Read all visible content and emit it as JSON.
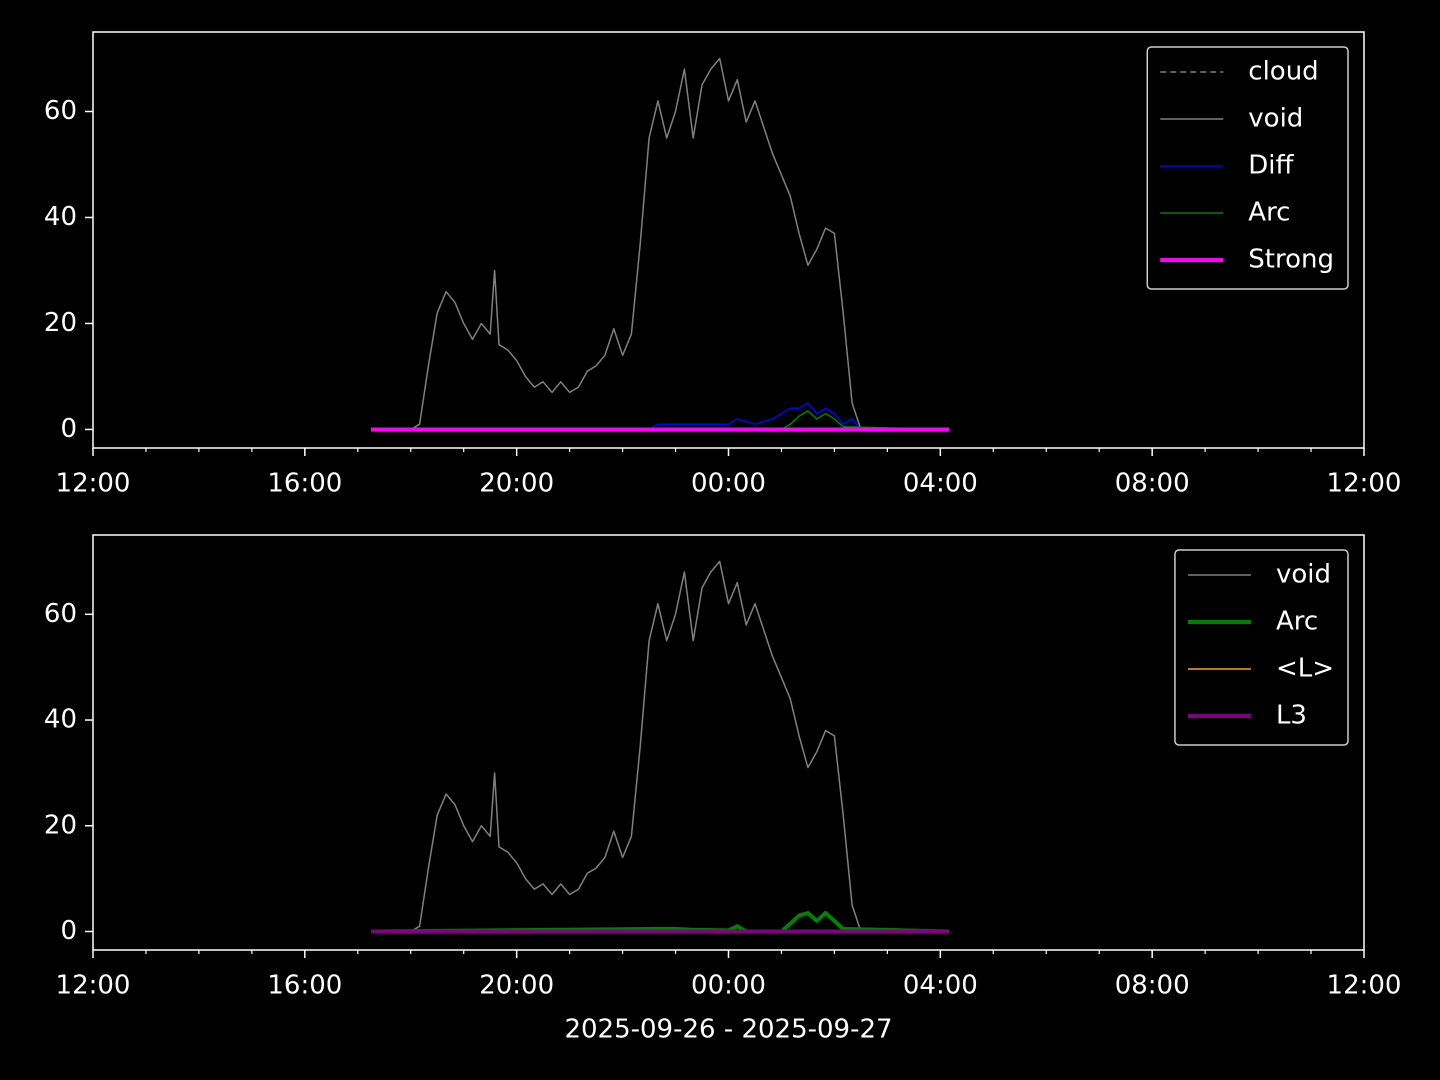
{
  "chart_data": [
    {
      "type": "line",
      "xlim": [
        "2025-09-26T12:00",
        "2025-09-27T12:00"
      ],
      "xticks": [
        {
          "value": "2025-09-26T12:00",
          "label": "12:00"
        },
        {
          "value": "2025-09-26T16:00",
          "label": "16:00"
        },
        {
          "value": "2025-09-26T20:00",
          "label": "20:00"
        },
        {
          "value": "2025-09-27T00:00",
          "label": "00:00"
        },
        {
          "value": "2025-09-27T04:00",
          "label": "04:00"
        },
        {
          "value": "2025-09-27T08:00",
          "label": "08:00"
        },
        {
          "value": "2025-09-27T12:00",
          "label": "12:00"
        }
      ],
      "xminorticks": [
        "2025-09-26T13:00",
        "2025-09-26T14:00",
        "2025-09-26T15:00",
        "2025-09-26T17:00",
        "2025-09-26T18:00",
        "2025-09-26T19:00",
        "2025-09-26T21:00",
        "2025-09-26T22:00",
        "2025-09-26T23:00",
        "2025-09-27T01:00",
        "2025-09-27T02:00",
        "2025-09-27T03:00",
        "2025-09-27T05:00",
        "2025-09-27T06:00",
        "2025-09-27T07:00",
        "2025-09-27T09:00",
        "2025-09-27T10:00",
        "2025-09-27T11:00"
      ],
      "ylim": [
        -3.5,
        75
      ],
      "yticks": [
        0,
        20,
        40,
        60
      ],
      "legend": "upper right",
      "series": [
        {
          "name": "cloud",
          "color": "#808080",
          "linestyle": "dashed",
          "linewidth": 1.5,
          "x": [
            "2025-09-26T17:15",
            "2025-09-27T04:10"
          ],
          "values": [
            0,
            0
          ]
        },
        {
          "name": "void",
          "color": "#808080",
          "linewidth": 1.5,
          "x": [
            "2025-09-26T18:00",
            "2025-09-26T18:10",
            "2025-09-26T18:20",
            "2025-09-26T18:30",
            "2025-09-26T18:40",
            "2025-09-26T18:50",
            "2025-09-26T19:00",
            "2025-09-26T19:10",
            "2025-09-26T19:20",
            "2025-09-26T19:30",
            "2025-09-26T19:35",
            "2025-09-26T19:40",
            "2025-09-26T19:50",
            "2025-09-26T20:00",
            "2025-09-26T20:10",
            "2025-09-26T20:20",
            "2025-09-26T20:30",
            "2025-09-26T20:40",
            "2025-09-26T20:50",
            "2025-09-26T21:00",
            "2025-09-26T21:10",
            "2025-09-26T21:20",
            "2025-09-26T21:30",
            "2025-09-26T21:40",
            "2025-09-26T21:50",
            "2025-09-26T22:00",
            "2025-09-26T22:10",
            "2025-09-26T22:20",
            "2025-09-26T22:30",
            "2025-09-26T22:40",
            "2025-09-26T22:50",
            "2025-09-26T23:00",
            "2025-09-26T23:10",
            "2025-09-26T23:20",
            "2025-09-26T23:30",
            "2025-09-26T23:40",
            "2025-09-26T23:50",
            "2025-09-27T00:00",
            "2025-09-27T00:10",
            "2025-09-27T00:20",
            "2025-09-27T00:30",
            "2025-09-27T00:40",
            "2025-09-27T00:50",
            "2025-09-27T01:00",
            "2025-09-27T01:10",
            "2025-09-27T01:20",
            "2025-09-27T01:30",
            "2025-09-27T01:40",
            "2025-09-27T01:50",
            "2025-09-27T02:00",
            "2025-09-27T02:10",
            "2025-09-27T02:20",
            "2025-09-27T02:30"
          ],
          "values": [
            0,
            1,
            12,
            22,
            26,
            24,
            20,
            17,
            20,
            18,
            30,
            16,
            15,
            13,
            10,
            8,
            9,
            7,
            9,
            7,
            8,
            11,
            12,
            14,
            19,
            14,
            18,
            35,
            55,
            62,
            55,
            60,
            68,
            55,
            65,
            68,
            70,
            62,
            66,
            58,
            62,
            57,
            52,
            48,
            44,
            37,
            31,
            34,
            38,
            37,
            22,
            5,
            0
          ]
        },
        {
          "name": "Diff",
          "color": "#0000ff",
          "linewidth": 1.5,
          "x": [
            "2025-09-26T17:15",
            "2025-09-26T22:30",
            "2025-09-26T22:40",
            "2025-09-26T23:00",
            "2025-09-26T23:20",
            "2025-09-26T23:40",
            "2025-09-27T00:00",
            "2025-09-27T00:10",
            "2025-09-27T00:30",
            "2025-09-27T00:50",
            "2025-09-27T01:10",
            "2025-09-27T01:20",
            "2025-09-27T01:30",
            "2025-09-27T01:40",
            "2025-09-27T01:50",
            "2025-09-27T02:00",
            "2025-09-27T02:10",
            "2025-09-27T02:20",
            "2025-09-27T02:30",
            "2025-09-27T04:10"
          ],
          "values": [
            0,
            0,
            1,
            1,
            1,
            1,
            1,
            2,
            1,
            2,
            4,
            4,
            5,
            3,
            4,
            3,
            1,
            2,
            0,
            0
          ]
        },
        {
          "name": "Arc",
          "color": "#008000",
          "linewidth": 1.5,
          "x": [
            "2025-09-26T17:15",
            "2025-09-27T01:00",
            "2025-09-27T01:10",
            "2025-09-27T01:20",
            "2025-09-27T01:30",
            "2025-09-27T01:40",
            "2025-09-27T01:50",
            "2025-09-27T02:00",
            "2025-09-27T02:10",
            "2025-09-27T04:10"
          ],
          "values": [
            0,
            0,
            1,
            2.5,
            3.5,
            2,
            3,
            2,
            0.5,
            0
          ]
        },
        {
          "name": "Strong",
          "color": "#ff00ff",
          "linewidth": 4,
          "x": [
            "2025-09-26T17:15",
            "2025-09-27T04:10"
          ],
          "values": [
            0,
            0
          ]
        }
      ]
    },
    {
      "type": "line",
      "xlabel": "2025-09-26 - 2025-09-27",
      "xlim": [
        "2025-09-26T12:00",
        "2025-09-27T12:00"
      ],
      "xticks": [
        {
          "value": "2025-09-26T12:00",
          "label": "12:00"
        },
        {
          "value": "2025-09-26T16:00",
          "label": "16:00"
        },
        {
          "value": "2025-09-26T20:00",
          "label": "20:00"
        },
        {
          "value": "2025-09-27T00:00",
          "label": "00:00"
        },
        {
          "value": "2025-09-27T04:00",
          "label": "04:00"
        },
        {
          "value": "2025-09-27T08:00",
          "label": "08:00"
        },
        {
          "value": "2025-09-27T12:00",
          "label": "12:00"
        }
      ],
      "xminorticks": [
        "2025-09-26T13:00",
        "2025-09-26T14:00",
        "2025-09-26T15:00",
        "2025-09-26T17:00",
        "2025-09-26T18:00",
        "2025-09-26T19:00",
        "2025-09-26T21:00",
        "2025-09-26T22:00",
        "2025-09-26T23:00",
        "2025-09-27T01:00",
        "2025-09-27T02:00",
        "2025-09-27T03:00",
        "2025-09-27T05:00",
        "2025-09-27T06:00",
        "2025-09-27T07:00",
        "2025-09-27T09:00",
        "2025-09-27T10:00",
        "2025-09-27T11:00"
      ],
      "ylim": [
        -3.5,
        75
      ],
      "yticks": [
        0,
        20,
        40,
        60
      ],
      "legend": "upper right",
      "series": [
        {
          "name": "void",
          "color": "#808080",
          "linewidth": 1.5,
          "x": [
            "2025-09-26T18:00",
            "2025-09-26T18:10",
            "2025-09-26T18:20",
            "2025-09-26T18:30",
            "2025-09-26T18:40",
            "2025-09-26T18:50",
            "2025-09-26T19:00",
            "2025-09-26T19:10",
            "2025-09-26T19:20",
            "2025-09-26T19:30",
            "2025-09-26T19:35",
            "2025-09-26T19:40",
            "2025-09-26T19:50",
            "2025-09-26T20:00",
            "2025-09-26T20:10",
            "2025-09-26T20:20",
            "2025-09-26T20:30",
            "2025-09-26T20:40",
            "2025-09-26T20:50",
            "2025-09-26T21:00",
            "2025-09-26T21:10",
            "2025-09-26T21:20",
            "2025-09-26T21:30",
            "2025-09-26T21:40",
            "2025-09-26T21:50",
            "2025-09-26T22:00",
            "2025-09-26T22:10",
            "2025-09-26T22:20",
            "2025-09-26T22:30",
            "2025-09-26T22:40",
            "2025-09-26T22:50",
            "2025-09-26T23:00",
            "2025-09-26T23:10",
            "2025-09-26T23:20",
            "2025-09-26T23:30",
            "2025-09-26T23:40",
            "2025-09-26T23:50",
            "2025-09-27T00:00",
            "2025-09-27T00:10",
            "2025-09-27T00:20",
            "2025-09-27T00:30",
            "2025-09-27T00:40",
            "2025-09-27T00:50",
            "2025-09-27T01:00",
            "2025-09-27T01:10",
            "2025-09-27T01:20",
            "2025-09-27T01:30",
            "2025-09-27T01:40",
            "2025-09-27T01:50",
            "2025-09-27T02:00",
            "2025-09-27T02:10",
            "2025-09-27T02:20",
            "2025-09-27T02:30"
          ],
          "values": [
            0,
            1,
            12,
            22,
            26,
            24,
            20,
            17,
            20,
            18,
            30,
            16,
            15,
            13,
            10,
            8,
            9,
            7,
            9,
            7,
            8,
            11,
            12,
            14,
            19,
            14,
            18,
            35,
            55,
            62,
            55,
            60,
            68,
            55,
            65,
            68,
            70,
            62,
            66,
            58,
            62,
            57,
            52,
            48,
            44,
            37,
            31,
            34,
            38,
            37,
            22,
            5,
            0
          ]
        },
        {
          "name": "Arc",
          "color": "#008000",
          "linewidth": 4,
          "x": [
            "2025-09-26T17:15",
            "2025-09-26T22:40",
            "2025-09-26T23:00",
            "2025-09-26T23:20",
            "2025-09-27T00:00",
            "2025-09-27T00:10",
            "2025-09-27T00:20",
            "2025-09-27T01:00",
            "2025-09-27T01:10",
            "2025-09-27T01:20",
            "2025-09-27T01:30",
            "2025-09-27T01:40",
            "2025-09-27T01:50",
            "2025-09-27T02:00",
            "2025-09-27T02:10",
            "2025-09-27T04:10"
          ],
          "values": [
            0,
            0.5,
            0.5,
            0.3,
            0.2,
            1,
            0,
            0,
            1.5,
            3,
            3.5,
            2,
            3.5,
            2,
            0.5,
            0
          ]
        },
        {
          "name": "<L>",
          "color": "#ffa500",
          "linewidth": 1.5,
          "x": [
            "2025-09-26T17:15",
            "2025-09-27T04:10"
          ],
          "values": [
            0,
            0
          ]
        },
        {
          "name": "L3",
          "color": "#800080",
          "linewidth": 4,
          "x": [
            "2025-09-26T17:15",
            "2025-09-27T04:10"
          ],
          "values": [
            0,
            0
          ]
        }
      ]
    }
  ]
}
